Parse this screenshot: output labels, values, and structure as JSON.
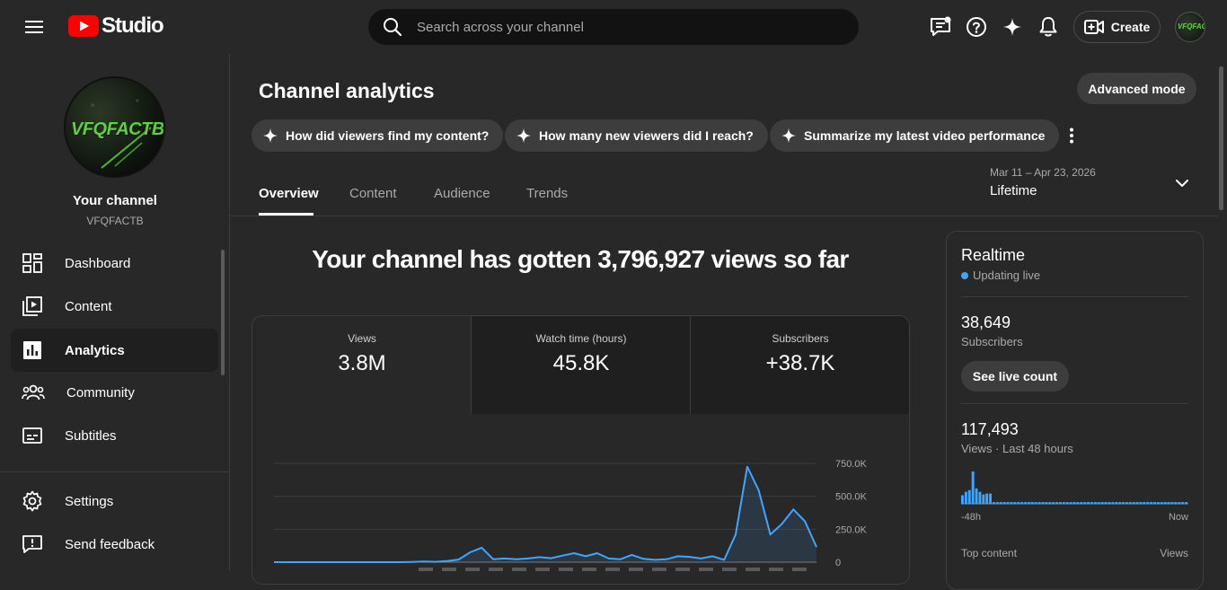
{
  "header": {
    "logo_text": "Studio",
    "search_placeholder": "Search across your channel",
    "create_label": "Create",
    "avatar_text": "VFQFACTB"
  },
  "sidebar": {
    "avatar_text": "VFQFACTB",
    "channel_label": "Your channel",
    "channel_handle": "VFQFACTB",
    "items": [
      {
        "label": "Dashboard",
        "icon": "dashboard-icon"
      },
      {
        "label": "Content",
        "icon": "content-icon"
      },
      {
        "label": "Analytics",
        "icon": "analytics-icon",
        "active": true
      },
      {
        "label": "Community",
        "icon": "community-icon"
      },
      {
        "label": "Subtitles",
        "icon": "subtitles-icon"
      }
    ],
    "bottom_items": [
      {
        "label": "Settings",
        "icon": "gear-icon"
      },
      {
        "label": "Send feedback",
        "icon": "feedback-icon"
      }
    ]
  },
  "main": {
    "title": "Channel analytics",
    "advanced_mode_label": "Advanced mode",
    "chips": [
      "How did viewers find my content?",
      "How many new viewers did I reach?",
      "Summarize my latest video performance"
    ],
    "tabs": [
      "Overview",
      "Content",
      "Audience",
      "Trends"
    ],
    "active_tab": "Overview",
    "date_range": "Mar 11 – Apr 23, 2026",
    "date_selection": "Lifetime",
    "headline": "Your channel has gotten 3,796,927 views so far",
    "metrics": [
      {
        "label": "Views",
        "value": "3.8M"
      },
      {
        "label": "Watch time (hours)",
        "value": "45.8K"
      },
      {
        "label": "Subscribers",
        "value": "+38.7K"
      }
    ]
  },
  "chart_data": {
    "type": "area",
    "ylim": [
      0,
      750000
    ],
    "y_ticks": [
      {
        "value": 750000,
        "label": "750.0K"
      },
      {
        "value": 500000,
        "label": "500.0K"
      },
      {
        "value": 250000,
        "label": "250.0K"
      },
      {
        "value": 0,
        "label": "0"
      }
    ],
    "values": [
      0,
      0,
      0,
      0,
      0,
      0,
      0,
      0,
      0,
      0,
      0,
      0,
      2000,
      5000,
      3000,
      8000,
      20000,
      75000,
      110000,
      22000,
      28000,
      22000,
      28000,
      38000,
      30000,
      50000,
      68000,
      45000,
      68000,
      28000,
      22000,
      55000,
      25000,
      18000,
      22000,
      45000,
      40000,
      28000,
      45000,
      18000,
      210000,
      725000,
      545000,
      210000,
      290000,
      400000,
      310000,
      115000
    ],
    "color": "#3ea6ff"
  },
  "realtime": {
    "title": "Realtime",
    "status": "Updating live",
    "subscribers_value": "38,649",
    "subscribers_label": "Subscribers",
    "live_count_label": "See live count",
    "views_value": "117,493",
    "views_label": "Views · Last 48 hours",
    "axis_start": "-48h",
    "axis_end": "Now",
    "top_content_label": "Top content",
    "views_col_label": "Views",
    "bars": [
      10,
      14,
      16,
      38,
      18,
      14,
      11,
      12,
      12,
      2,
      2,
      2,
      2,
      2,
      2,
      2,
      2,
      2,
      2,
      2,
      2,
      2,
      2,
      2,
      2,
      2,
      2,
      2,
      2,
      2,
      2,
      2,
      2,
      2,
      2,
      2,
      2,
      2,
      2,
      2,
      2,
      2,
      2,
      2,
      2,
      2,
      2,
      2,
      2,
      2,
      2,
      2,
      2,
      2,
      2,
      2,
      2,
      2,
      2,
      2,
      2,
      2,
      2,
      2,
      2
    ]
  },
  "colors": {
    "accent": "#3ea6ff",
    "background": "#282828",
    "youtube_red": "#ff0000"
  }
}
